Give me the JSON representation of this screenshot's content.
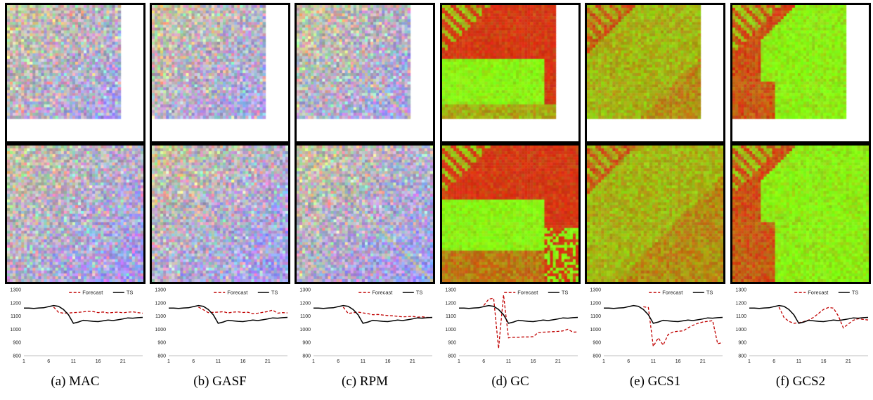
{
  "panels": [
    {
      "id": "a",
      "caption": "(a) MAC",
      "palette": "rgb",
      "diag": false,
      "style": "noise"
    },
    {
      "id": "b",
      "caption": "(b) GASF",
      "palette": "rgb",
      "diag": false,
      "style": "noise"
    },
    {
      "id": "c",
      "caption": "(c) RPM",
      "palette": "rgb",
      "diag": true,
      "style": "noise"
    },
    {
      "id": "d",
      "caption": "(d) GC",
      "palette": "redgreen",
      "diag": false,
      "style": "gc"
    },
    {
      "id": "e",
      "caption": "(e) GCS1",
      "palette": "redgreen",
      "diag": false,
      "style": "gcs1"
    },
    {
      "id": "f",
      "caption": "(f) GCS2",
      "palette": "redgreen",
      "diag": false,
      "style": "gcs2"
    }
  ],
  "colors": {
    "forecast": "#c00000",
    "ts": "#000000",
    "axis": "#bfbfbf"
  },
  "chart_data": [
    {
      "type": "line",
      "panel": "(a) MAC",
      "x": [
        1,
        2,
        3,
        4,
        5,
        6,
        7,
        8,
        9,
        10,
        11,
        12,
        13,
        14,
        15,
        16,
        17,
        18,
        19,
        20,
        21,
        22,
        23,
        24,
        25
      ],
      "ylim": [
        800,
        1300
      ],
      "yticks": [
        800,
        900,
        1000,
        1100,
        1200,
        1300
      ],
      "xticks": [
        1,
        6,
        11,
        16,
        21
      ],
      "series": [
        {
          "name": "Forecast",
          "style": "dashed",
          "values": [
            null,
            null,
            null,
            null,
            null,
            null,
            1168,
            1128,
            1122,
            1123,
            1126,
            1128,
            1132,
            1136,
            1134,
            1126,
            1131,
            1124,
            1127,
            1130,
            1125,
            1129,
            1132,
            1126,
            1122
          ]
        },
        {
          "name": "TS",
          "style": "solid",
          "values": [
            1160,
            1160,
            1158,
            1161,
            1163,
            1172,
            1180,
            1174,
            1150,
            1110,
            1045,
            1055,
            1068,
            1064,
            1060,
            1058,
            1064,
            1070,
            1066,
            1072,
            1078,
            1086,
            1084,
            1088,
            1090
          ]
        }
      ]
    },
    {
      "type": "line",
      "panel": "(b) GASF",
      "x": [
        1,
        2,
        3,
        4,
        5,
        6,
        7,
        8,
        9,
        10,
        11,
        12,
        13,
        14,
        15,
        16,
        17,
        18,
        19,
        20,
        21,
        22,
        23,
        24,
        25
      ],
      "ylim": [
        800,
        1300
      ],
      "yticks": [
        800,
        900,
        1000,
        1100,
        1200,
        1300
      ],
      "xticks": [
        1,
        6,
        11,
        16,
        21
      ],
      "series": [
        {
          "name": "Forecast",
          "style": "dashed",
          "values": [
            null,
            null,
            null,
            null,
            null,
            null,
            1168,
            1148,
            1126,
            1128,
            1130,
            1133,
            1124,
            1130,
            1132,
            1127,
            1129,
            1118,
            1122,
            1128,
            1134,
            1145,
            1122,
            1126,
            1124
          ]
        },
        {
          "name": "TS",
          "style": "solid",
          "values": [
            1160,
            1160,
            1158,
            1161,
            1163,
            1172,
            1180,
            1174,
            1150,
            1110,
            1045,
            1055,
            1068,
            1064,
            1060,
            1058,
            1064,
            1070,
            1066,
            1072,
            1078,
            1086,
            1084,
            1088,
            1090
          ]
        }
      ]
    },
    {
      "type": "line",
      "panel": "(c) RPM",
      "x": [
        1,
        2,
        3,
        4,
        5,
        6,
        7,
        8,
        9,
        10,
        11,
        12,
        13,
        14,
        15,
        16,
        17,
        18,
        19,
        20,
        21,
        22,
        23,
        24,
        25
      ],
      "ylim": [
        800,
        1300
      ],
      "yticks": [
        800,
        900,
        1000,
        1100,
        1200,
        1300
      ],
      "xticks": [
        1,
        6,
        11,
        16,
        21
      ],
      "series": [
        {
          "name": "Forecast",
          "style": "dashed",
          "values": [
            null,
            null,
            null,
            null,
            null,
            null,
            1168,
            1120,
            1125,
            1130,
            1124,
            1118,
            1110,
            1112,
            1108,
            1104,
            1102,
            1098,
            1094,
            1096,
            1098,
            1092,
            1094,
            1090,
            1089
          ]
        },
        {
          "name": "TS",
          "style": "solid",
          "values": [
            1160,
            1160,
            1158,
            1161,
            1163,
            1172,
            1180,
            1174,
            1150,
            1110,
            1045,
            1055,
            1068,
            1064,
            1060,
            1058,
            1064,
            1070,
            1066,
            1072,
            1078,
            1086,
            1084,
            1088,
            1090
          ]
        }
      ]
    },
    {
      "type": "line",
      "panel": "(d) GC",
      "x": [
        1,
        2,
        3,
        4,
        5,
        6,
        7,
        8,
        9,
        10,
        11,
        12,
        13,
        14,
        15,
        16,
        17,
        18,
        19,
        20,
        21,
        22,
        23,
        24,
        25
      ],
      "ylim": [
        800,
        1300
      ],
      "yticks": [
        800,
        900,
        1000,
        1100,
        1200,
        1300
      ],
      "xticks": [
        1,
        6,
        11,
        16,
        21
      ],
      "series": [
        {
          "name": "Forecast",
          "style": "dashed",
          "values": [
            null,
            null,
            null,
            null,
            null,
            1180,
            1228,
            1235,
            855,
            1260,
            935,
            940,
            940,
            942,
            942,
            944,
            975,
            978,
            980,
            982,
            984,
            988,
            1000,
            978,
            980
          ]
        },
        {
          "name": "TS",
          "style": "solid",
          "values": [
            1160,
            1160,
            1158,
            1161,
            1163,
            1172,
            1180,
            1174,
            1150,
            1110,
            1045,
            1055,
            1068,
            1064,
            1060,
            1058,
            1064,
            1070,
            1066,
            1072,
            1078,
            1086,
            1084,
            1088,
            1090
          ]
        }
      ]
    },
    {
      "type": "line",
      "panel": "(e) GCS1",
      "x": [
        1,
        2,
        3,
        4,
        5,
        6,
        7,
        8,
        9,
        10,
        11,
        12,
        13,
        14,
        15,
        16,
        17,
        18,
        19,
        20,
        21,
        22,
        23,
        24,
        25
      ],
      "ylim": [
        800,
        1300
      ],
      "yticks": [
        800,
        900,
        1000,
        1100,
        1200,
        1300
      ],
      "xticks": [
        1,
        6,
        11,
        16,
        21
      ],
      "series": [
        {
          "name": "Forecast",
          "style": "dashed",
          "values": [
            null,
            null,
            null,
            null,
            null,
            null,
            null,
            null,
            1170,
            1165,
            870,
            935,
            880,
            960,
            980,
            985,
            988,
            1010,
            1030,
            1045,
            1055,
            1060,
            1065,
            890,
            900
          ]
        },
        {
          "name": "TS",
          "style": "solid",
          "values": [
            1160,
            1160,
            1158,
            1161,
            1163,
            1172,
            1180,
            1174,
            1150,
            1110,
            1045,
            1055,
            1068,
            1064,
            1060,
            1058,
            1064,
            1070,
            1066,
            1072,
            1078,
            1086,
            1084,
            1088,
            1090
          ]
        }
      ]
    },
    {
      "type": "line",
      "panel": "(f) GCS2",
      "x": [
        1,
        2,
        3,
        4,
        5,
        6,
        7,
        8,
        9,
        10,
        11,
        12,
        13,
        14,
        15,
        16,
        17,
        18,
        19,
        20,
        21,
        22,
        23,
        24,
        25
      ],
      "ylim": [
        800,
        1300
      ],
      "yticks": [
        800,
        900,
        1000,
        1100,
        1200,
        1300
      ],
      "xticks": [
        1,
        6,
        11,
        16,
        21
      ],
      "series": [
        {
          "name": "Forecast",
          "style": "dashed",
          "values": [
            null,
            null,
            null,
            null,
            null,
            null,
            1168,
            1090,
            1060,
            1045,
            1050,
            1058,
            1070,
            1090,
            1120,
            1150,
            1165,
            1160,
            1100,
            1010,
            1040,
            1068,
            1080,
            1075,
            1070
          ]
        },
        {
          "name": "TS",
          "style": "solid",
          "values": [
            1160,
            1160,
            1158,
            1161,
            1163,
            1172,
            1180,
            1174,
            1150,
            1110,
            1045,
            1055,
            1068,
            1064,
            1060,
            1058,
            1064,
            1070,
            1066,
            1072,
            1078,
            1086,
            1084,
            1088,
            1090
          ]
        }
      ]
    }
  ]
}
